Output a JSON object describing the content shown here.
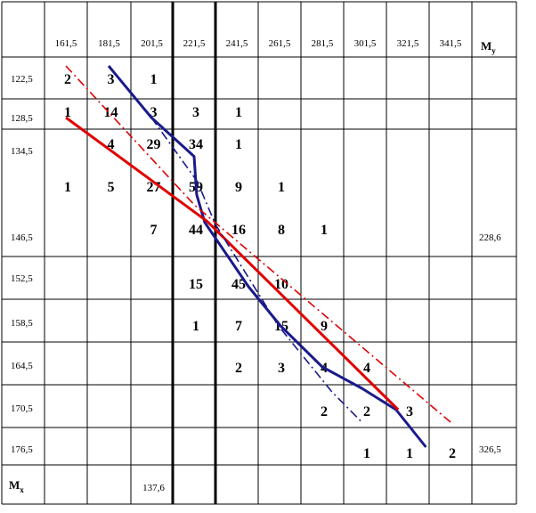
{
  "chart_data": {
    "type": "table",
    "x_header": [
      "161,5",
      "181,5",
      "201,5",
      "221,5",
      "241,5",
      "261,5",
      "281,5",
      "301,5",
      "321,5",
      "341,5"
    ],
    "y_header": [
      "122,5",
      "128,5",
      "134,5",
      "146,5",
      "152,5",
      "158,5",
      "164,5",
      "170,5",
      "176,5"
    ],
    "my_label": "M",
    "my_sub": "y",
    "mx_label": "M",
    "mx_sub": "x",
    "my_values": [
      {
        "row": 3,
        "text": "228,6"
      },
      {
        "row": 8,
        "text": "326,5"
      }
    ],
    "mx_values": [
      {
        "col": 3,
        "text": "137,6"
      }
    ],
    "cells": [
      {
        "row": 0,
        "col": 1,
        "v": "2"
      },
      {
        "row": 0,
        "col": 2,
        "v": "3"
      },
      {
        "row": 0,
        "col": 3,
        "v": "1"
      },
      {
        "row": 1,
        "col": 1,
        "v": "1"
      },
      {
        "row": 1,
        "col": 2,
        "v": "14"
      },
      {
        "row": 1,
        "col": 3,
        "v": "3"
      },
      {
        "row": 1,
        "col": 4,
        "v": "3"
      },
      {
        "row": 1,
        "col": 5,
        "v": "1"
      },
      {
        "row": 2,
        "col": 2,
        "v": "4"
      },
      {
        "row": 2,
        "col": 3,
        "v": "29"
      },
      {
        "row": 2,
        "col": 4,
        "v": "34"
      },
      {
        "row": 2,
        "col": 5,
        "v": "1"
      },
      {
        "row": 2.5,
        "col": 1,
        "v": "1"
      },
      {
        "row": 2.5,
        "col": 2,
        "v": "5"
      },
      {
        "row": 2.5,
        "col": 3,
        "v": "27"
      },
      {
        "row": 2.5,
        "col": 4,
        "v": "59"
      },
      {
        "row": 2.5,
        "col": 5,
        "v": "9"
      },
      {
        "row": 2.5,
        "col": 6,
        "v": "1"
      },
      {
        "row": 3,
        "col": 3,
        "v": "7"
      },
      {
        "row": 3,
        "col": 4,
        "v": "44"
      },
      {
        "row": 3,
        "col": 5,
        "v": "16"
      },
      {
        "row": 3,
        "col": 6,
        "v": "8"
      },
      {
        "row": 3,
        "col": 7,
        "v": "1"
      },
      {
        "row": 4,
        "col": 4,
        "v": "15"
      },
      {
        "row": 4,
        "col": 5,
        "v": "45"
      },
      {
        "row": 4,
        "col": 6,
        "v": "10"
      },
      {
        "row": 5,
        "col": 4,
        "v": "1"
      },
      {
        "row": 5,
        "col": 5,
        "v": "7"
      },
      {
        "row": 5,
        "col": 6,
        "v": "15"
      },
      {
        "row": 5,
        "col": 7,
        "v": "9"
      },
      {
        "row": 6,
        "col": 5,
        "v": "2"
      },
      {
        "row": 6,
        "col": 6,
        "v": "3"
      },
      {
        "row": 6,
        "col": 7,
        "v": "4"
      },
      {
        "row": 6,
        "col": 8,
        "v": "4"
      },
      {
        "row": 7,
        "col": 7,
        "v": "2"
      },
      {
        "row": 7,
        "col": 8,
        "v": "2"
      },
      {
        "row": 7,
        "col": 9,
        "v": "3"
      },
      {
        "row": 8,
        "col": 8,
        "v": "1"
      },
      {
        "row": 8,
        "col": 9,
        "v": "1"
      },
      {
        "row": 8,
        "col": 10,
        "v": "2"
      }
    ],
    "series": [
      {
        "style": "solid",
        "color": "#1a1a8c",
        "points": [
          [
            181.5,
            122.5
          ],
          [
            201.5,
            128.5
          ],
          [
            221.5,
            136.2
          ],
          [
            222.7,
            142.0
          ],
          [
            226.5,
            146.2
          ],
          [
            247.0,
            153.0
          ],
          [
            262.0,
            158.5
          ],
          [
            281.5,
            164.5
          ],
          [
            300.0,
            167.5
          ],
          [
            316.0,
            170.5
          ],
          [
            330.0,
            176.5
          ]
        ]
      },
      {
        "style": "solid",
        "color": "#e00000",
        "points": [
          [
            161.5,
            128.5
          ],
          [
            227.5,
            146.0
          ],
          [
            317.0,
            170.5
          ]
        ]
      },
      {
        "style": "dashdot",
        "color": "#1a1a8c",
        "points": [
          [
            201.5,
            128.5
          ],
          [
            223.0,
            140.0
          ],
          [
            231.5,
            146.5
          ],
          [
            261.0,
            158.5
          ],
          [
            286.0,
            168.0
          ],
          [
            300.0,
            172.5
          ]
        ]
      },
      {
        "style": "dashdot",
        "color": "#e00000",
        "points": [
          [
            161.5,
            122.5
          ],
          [
            221.5,
            143.5
          ],
          [
            341.5,
            172.5
          ]
        ]
      }
    ]
  }
}
